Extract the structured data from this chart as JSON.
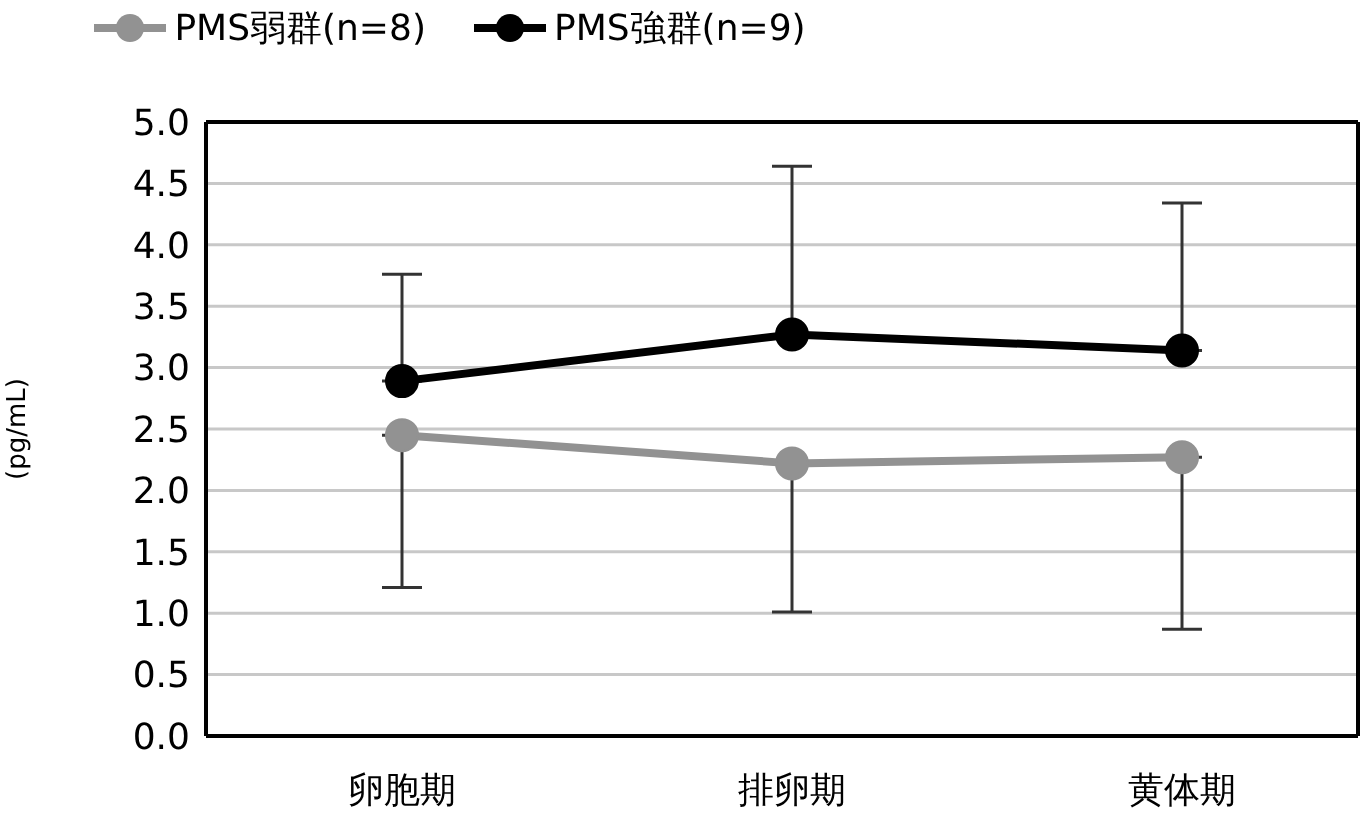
{
  "chart_data": {
    "type": "line",
    "ylabel": "(pg/mL)",
    "categories": [
      "卵胞期",
      "排卵期",
      "黄体期"
    ],
    "series": [
      {
        "name": "PMS弱群(n=8)",
        "color": "#929292",
        "values": [
          2.45,
          2.22,
          2.27
        ],
        "errors": [
          [
            1.21,
            2.45
          ],
          [
            1.01,
            2.22
          ],
          [
            0.87,
            2.27
          ]
        ]
      },
      {
        "name": "PMS強群(n=9)",
        "color": "#000000",
        "values": [
          2.89,
          3.27,
          3.14
        ],
        "errors": [
          [
            2.89,
            3.76
          ],
          [
            3.27,
            4.64
          ],
          [
            3.14,
            4.34
          ]
        ]
      }
    ],
    "ylim": [
      0,
      5
    ],
    "yticks": [
      {
        "value": 0,
        "label": "0.0"
      },
      0.5,
      {
        "value": 1,
        "label": "1.0"
      },
      1.5,
      {
        "value": 2,
        "label": "2.0"
      },
      2.5,
      {
        "value": 3,
        "label": "3.0"
      },
      3.5,
      {
        "value": 4,
        "label": "4.0"
      },
      4.5,
      {
        "value": 5,
        "label": "5.0"
      }
    ],
    "grid": "y",
    "legend": "top",
    "marker": "circle",
    "line_style": "solid"
  }
}
